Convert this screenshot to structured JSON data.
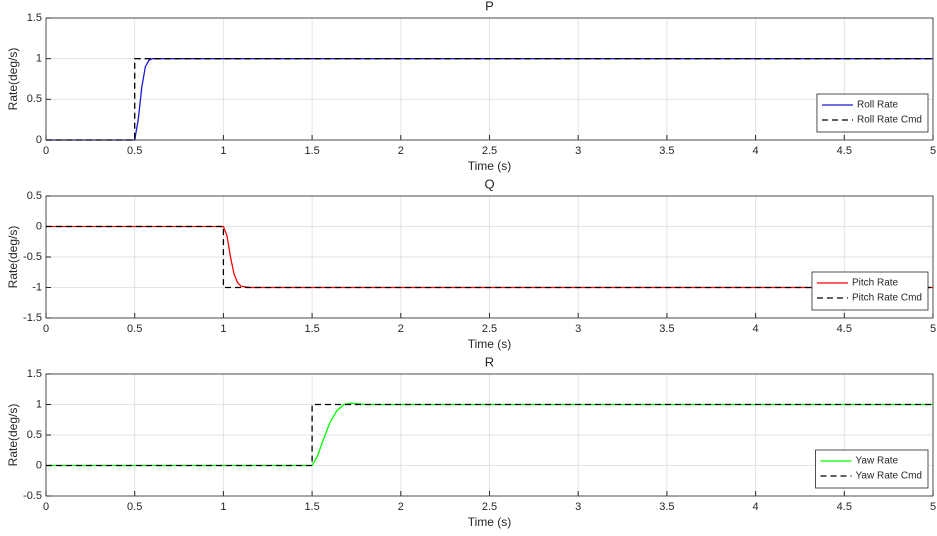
{
  "chart_data": [
    {
      "type": "line",
      "title": "P",
      "x_label": "Time (s)",
      "y_label": "Rate(deg/s)",
      "x": [
        0,
        0.5,
        0.5,
        0.52,
        0.54,
        0.56,
        0.58,
        0.6,
        0.7,
        5
      ],
      "series": [
        {
          "name": "Roll Rate",
          "color": "#1a1ad6",
          "style": "solid",
          "values": [
            0,
            0,
            0,
            0.25,
            0.65,
            0.9,
            0.98,
            1,
            1,
            1
          ]
        },
        {
          "name": "Roll Rate Cmd",
          "color": "#000000",
          "style": "dashed",
          "values": [
            0,
            0,
            1,
            1,
            1,
            1,
            1,
            1,
            1,
            1
          ]
        }
      ],
      "xlim": [
        0,
        5
      ],
      "xticks": [
        0,
        0.5,
        1,
        1.5,
        2,
        2.5,
        3,
        3.5,
        4,
        4.5,
        5
      ],
      "ylim": [
        0,
        1.5
      ],
      "yticks": [
        0,
        0.5,
        1,
        1.5
      ],
      "grid": true,
      "legend": "lower right"
    },
    {
      "type": "line",
      "title": "Q",
      "x_label": "Time (s)",
      "y_label": "Rate(deg/s)",
      "x": [
        0,
        1,
        1,
        1.02,
        1.04,
        1.06,
        1.08,
        1.1,
        1.15,
        5
      ],
      "series": [
        {
          "name": "Pitch Rate",
          "color": "#ff0000",
          "style": "solid",
          "values": [
            0,
            0,
            0,
            -0.15,
            -0.5,
            -0.78,
            -0.92,
            -0.98,
            -1,
            -1
          ]
        },
        {
          "name": "Pitch Rate Cmd",
          "color": "#000000",
          "style": "dashed",
          "values": [
            0,
            0,
            -1,
            -1,
            -1,
            -1,
            -1,
            -1,
            -1,
            -1
          ]
        }
      ],
      "xlim": [
        0,
        5
      ],
      "xticks": [
        0,
        0.5,
        1,
        1.5,
        2,
        2.5,
        3,
        3.5,
        4,
        4.5,
        5
      ],
      "ylim": [
        -1.5,
        0.5
      ],
      "yticks": [
        -1.5,
        -1,
        -0.5,
        0,
        0.5
      ],
      "grid": true,
      "legend": "lower right"
    },
    {
      "type": "line",
      "title": "R",
      "x_label": "Time (s)",
      "y_label": "Rate(deg/s)",
      "x": [
        0,
        1.5,
        1.5,
        1.53,
        1.56,
        1.6,
        1.64,
        1.68,
        1.72,
        1.8,
        5
      ],
      "series": [
        {
          "name": "Yaw Rate",
          "color": "#00ff00",
          "style": "solid",
          "values": [
            0,
            0,
            0,
            0.15,
            0.4,
            0.7,
            0.9,
            1.0,
            1.02,
            1.0,
            1.0
          ]
        },
        {
          "name": "Yaw Rate Cmd",
          "color": "#000000",
          "style": "dashed",
          "values": [
            0,
            0,
            1,
            1,
            1,
            1,
            1,
            1,
            1,
            1,
            1
          ]
        }
      ],
      "xlim": [
        0,
        5
      ],
      "xticks": [
        0,
        0.5,
        1,
        1.5,
        2,
        2.5,
        3,
        3.5,
        4,
        4.5,
        5
      ],
      "ylim": [
        -0.5,
        1.5
      ],
      "yticks": [
        -0.5,
        0,
        0.5,
        1,
        1.5
      ],
      "grid": true,
      "legend": "lower right"
    }
  ]
}
